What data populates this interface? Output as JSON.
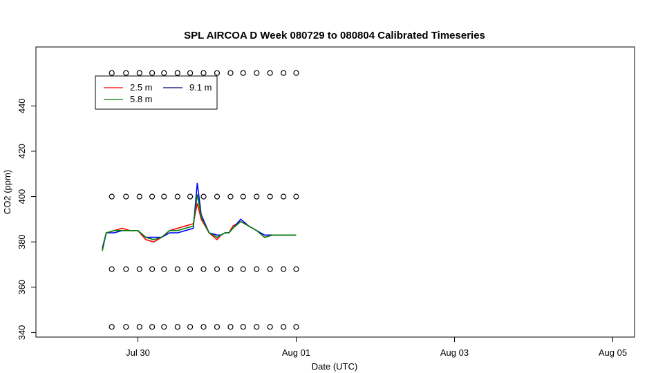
{
  "chart_data": {
    "type": "line",
    "title": "SPL AIRCOA D  Week 080729 to 080804  Calibrated Timeseries",
    "xlabel": "Date (UTC)",
    "ylabel": "CO2 (ppm)",
    "x_start": "2008-07-29",
    "x_range_days": [
      0.5,
      7.0
    ],
    "x_ticks": [
      {
        "label": "Jul 30",
        "day": 1
      },
      {
        "label": "Aug 01",
        "day": 3
      },
      {
        "label": "Aug 03",
        "day": 5
      },
      {
        "label": "Aug 05",
        "day": 7
      }
    ],
    "ylim": [
      338,
      466
    ],
    "y_ticks": [
      340,
      360,
      380,
      400,
      420,
      440
    ],
    "legend": {
      "placement": "top-left",
      "entries": [
        {
          "label": "2.5 m",
          "color": "#ff0000"
        },
        {
          "label": "9.1 m",
          "color": "#000080"
        },
        {
          "label": "5.8 m",
          "color": "#008000"
        }
      ]
    },
    "series": [
      {
        "name": "2.5 m",
        "color": "#ff0000",
        "x": [
          0.55,
          0.6,
          0.7,
          0.8,
          0.9,
          1.0,
          1.1,
          1.2,
          1.3,
          1.4,
          1.5,
          1.6,
          1.7,
          1.75,
          1.8,
          1.9,
          2.0,
          2.05,
          2.1,
          2.15,
          2.2,
          2.3,
          2.4,
          2.5,
          2.6,
          2.7,
          2.8,
          2.9,
          3.0
        ],
        "y": [
          377,
          384,
          385,
          386,
          385,
          385,
          381,
          380,
          382,
          385,
          386,
          387,
          388,
          397,
          390,
          384,
          381,
          383,
          384,
          384,
          387,
          389,
          387,
          385,
          382,
          383,
          383,
          383,
          383
        ]
      },
      {
        "name": "9.1 m",
        "color": "#0000ff",
        "x": [
          0.55,
          0.6,
          0.7,
          0.8,
          0.9,
          1.0,
          1.1,
          1.2,
          1.3,
          1.4,
          1.5,
          1.6,
          1.7,
          1.75,
          1.8,
          1.9,
          2.0,
          2.05,
          2.1,
          2.15,
          2.2,
          2.3,
          2.4,
          2.5,
          2.6,
          2.7,
          2.8,
          2.9,
          3.0
        ],
        "y": [
          377,
          384,
          384,
          385,
          385,
          385,
          382,
          382,
          382,
          384,
          384,
          385,
          386,
          406,
          392,
          384,
          383,
          383,
          384,
          384,
          386,
          390,
          387,
          385,
          383,
          383,
          383,
          383,
          383
        ]
      },
      {
        "name": "5.8 m",
        "color": "#008000",
        "x": [
          0.55,
          0.6,
          0.7,
          0.8,
          0.9,
          1.0,
          1.1,
          1.2,
          1.3,
          1.4,
          1.5,
          1.6,
          1.7,
          1.75,
          1.8,
          1.9,
          2.0,
          2.05,
          2.1,
          2.15,
          2.2,
          2.3,
          2.4,
          2.5,
          2.6,
          2.7,
          2.8,
          2.9,
          3.0
        ],
        "y": [
          376,
          384,
          385,
          385,
          385,
          385,
          382,
          381,
          382,
          385,
          385,
          386,
          387,
          401,
          391,
          384,
          382,
          383,
          384,
          384,
          386,
          389,
          387,
          385,
          382,
          383,
          383,
          383,
          383
        ]
      }
    ],
    "marker_rows": [
      {
        "y": 454.5,
        "x": [
          0.67,
          0.85,
          1.02,
          1.18,
          1.33,
          1.5,
          1.66,
          1.83,
          2.0,
          2.17,
          2.33,
          2.5,
          2.67,
          2.84,
          3.0
        ]
      },
      {
        "y": 400,
        "x": [
          0.67,
          0.85,
          1.02,
          1.18,
          1.33,
          1.5,
          1.66,
          1.83,
          2.0,
          2.17,
          2.33,
          2.5,
          2.67,
          2.84,
          3.0
        ]
      },
      {
        "y": 368,
        "x": [
          0.67,
          0.85,
          1.02,
          1.18,
          1.33,
          1.5,
          1.66,
          1.83,
          2.0,
          2.17,
          2.33,
          2.5,
          2.67,
          2.84,
          3.0
        ]
      },
      {
        "y": 342.5,
        "x": [
          0.67,
          0.85,
          1.02,
          1.18,
          1.33,
          1.5,
          1.66,
          1.83,
          2.0,
          2.17,
          2.33,
          2.5,
          2.67,
          2.84,
          3.0
        ]
      }
    ]
  }
}
